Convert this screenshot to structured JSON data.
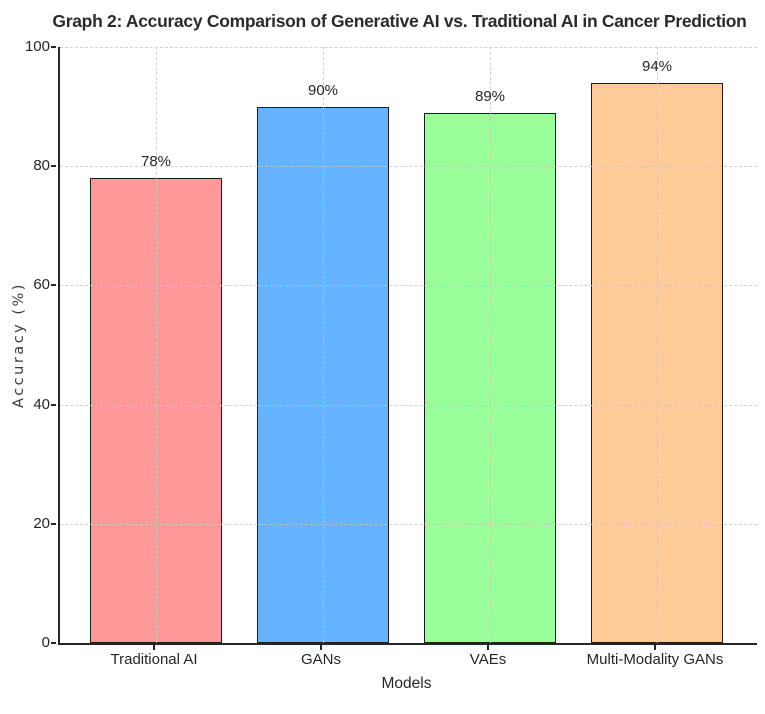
{
  "figure": {
    "background": "#ffffff",
    "text_color": "#262626",
    "spine_color": "#262626",
    "grid_color": "#c6c6c6"
  },
  "chart_data": {
    "type": "bar",
    "title": "Graph 2: Accuracy Comparison of Generative AI vs. Traditional AI in Cancer Prediction",
    "xlabel": "Models",
    "ylabel": "Accuracy (%)",
    "categories": [
      "Traditional AI",
      "GANs",
      "VAEs",
      "Multi-Modality GANs"
    ],
    "values": [
      78,
      90,
      89,
      94
    ],
    "value_labels": [
      "78%",
      "90%",
      "89%",
      "94%"
    ],
    "bar_colors": [
      "#ff9999",
      "#66b3ff",
      "#99ff99",
      "#ffcc99"
    ],
    "bar_edge_color": "#1c1c1c",
    "ylim": [
      0,
      100
    ],
    "yticks": [
      0,
      20,
      40,
      60,
      80,
      100
    ],
    "ytick_labels": [
      "0",
      "20",
      "40",
      "60",
      "80",
      "100"
    ],
    "grid": "dashed",
    "legend": "none"
  }
}
